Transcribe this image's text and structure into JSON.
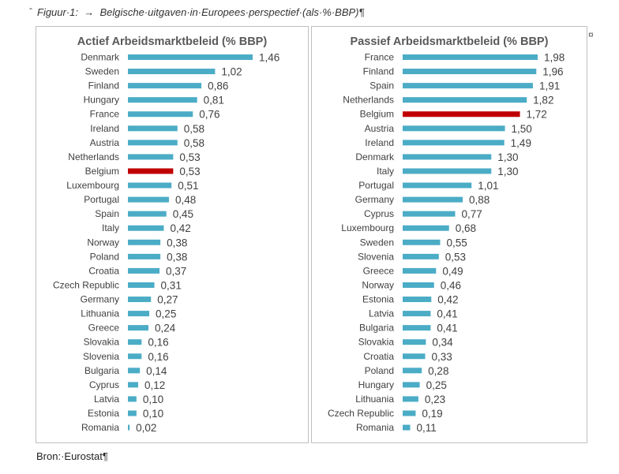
{
  "caption": {
    "mark": "-",
    "text": "Figuur·1:  →  Belgische·uitgaven·in·Europees·perspectief·(als·%·BBP)¶"
  },
  "cell_end_mark": "¤",
  "source": "Bron:·Eurostat¶",
  "colors": {
    "bar": "#4bacc6",
    "highlight": "#c00000",
    "text": "#404040",
    "title": "#595959",
    "border": "#bfbfbf"
  },
  "chart_data": [
    {
      "type": "bar",
      "orientation": "horizontal",
      "title": "Actief Arbeidsmarktbeleid (% BBP)",
      "highlight": "Belgium",
      "xlim": [
        0,
        1.46
      ],
      "categories": [
        "Denmark",
        "Sweden",
        "Finland",
        "Hungary",
        "France",
        "Ireland",
        "Austria",
        "Netherlands",
        "Belgium",
        "Luxembourg",
        "Portugal",
        "Spain",
        "Italy",
        "Norway",
        "Poland",
        "Croatia",
        "Czech Republic",
        "Germany",
        "Lithuania",
        "Greece",
        "Slovakia",
        "Slovenia",
        "Bulgaria",
        "Cyprus",
        "Latvia",
        "Estonia",
        "Romania"
      ],
      "values": [
        1.46,
        1.02,
        0.86,
        0.81,
        0.76,
        0.58,
        0.58,
        0.53,
        0.53,
        0.51,
        0.48,
        0.45,
        0.42,
        0.38,
        0.38,
        0.37,
        0.31,
        0.27,
        0.25,
        0.24,
        0.16,
        0.16,
        0.14,
        0.12,
        0.1,
        0.1,
        0.02
      ],
      "labels": [
        "1,46",
        "1,02",
        "0,86",
        "0,81",
        "0,76",
        "0,58",
        "0,58",
        "0,53",
        "0,53",
        "0,51",
        "0,48",
        "0,45",
        "0,42",
        "0,38",
        "0,38",
        "0,37",
        "0,31",
        "0,27",
        "0,25",
        "0,24",
        "0,16",
        "0,16",
        "0,14",
        "0,12",
        "0,10",
        "0,10",
        "0,02"
      ]
    },
    {
      "type": "bar",
      "orientation": "horizontal",
      "title": "Passief Arbeidsmarktbeleid (% BBP)",
      "highlight": "Belgium",
      "xlim": [
        0,
        1.98
      ],
      "categories": [
        "France",
        "Finland",
        "Spain",
        "Netherlands",
        "Belgium",
        "Austria",
        "Ireland",
        "Denmark",
        "Italy",
        "Portugal",
        "Germany",
        "Cyprus",
        "Luxembourg",
        "Sweden",
        "Slovenia",
        "Greece",
        "Norway",
        "Estonia",
        "Latvia",
        "Bulgaria",
        "Slovakia",
        "Croatia",
        "Poland",
        "Hungary",
        "Lithuania",
        "Czech Republic",
        "Romania"
      ],
      "values": [
        1.98,
        1.96,
        1.91,
        1.82,
        1.72,
        1.5,
        1.49,
        1.3,
        1.3,
        1.01,
        0.88,
        0.77,
        0.68,
        0.55,
        0.53,
        0.49,
        0.46,
        0.42,
        0.41,
        0.41,
        0.34,
        0.33,
        0.28,
        0.25,
        0.23,
        0.19,
        0.11
      ],
      "labels": [
        "1,98",
        "1,96",
        "1,91",
        "1,82",
        "1,72",
        "1,50",
        "1,49",
        "1,30",
        "1,30",
        "1,01",
        "0,88",
        "0,77",
        "0,68",
        "0,55",
        "0,53",
        "0,49",
        "0,46",
        "0,42",
        "0,41",
        "0,41",
        "0,34",
        "0,33",
        "0,28",
        "0,25",
        "0,23",
        "0,19",
        "0,11"
      ]
    }
  ]
}
